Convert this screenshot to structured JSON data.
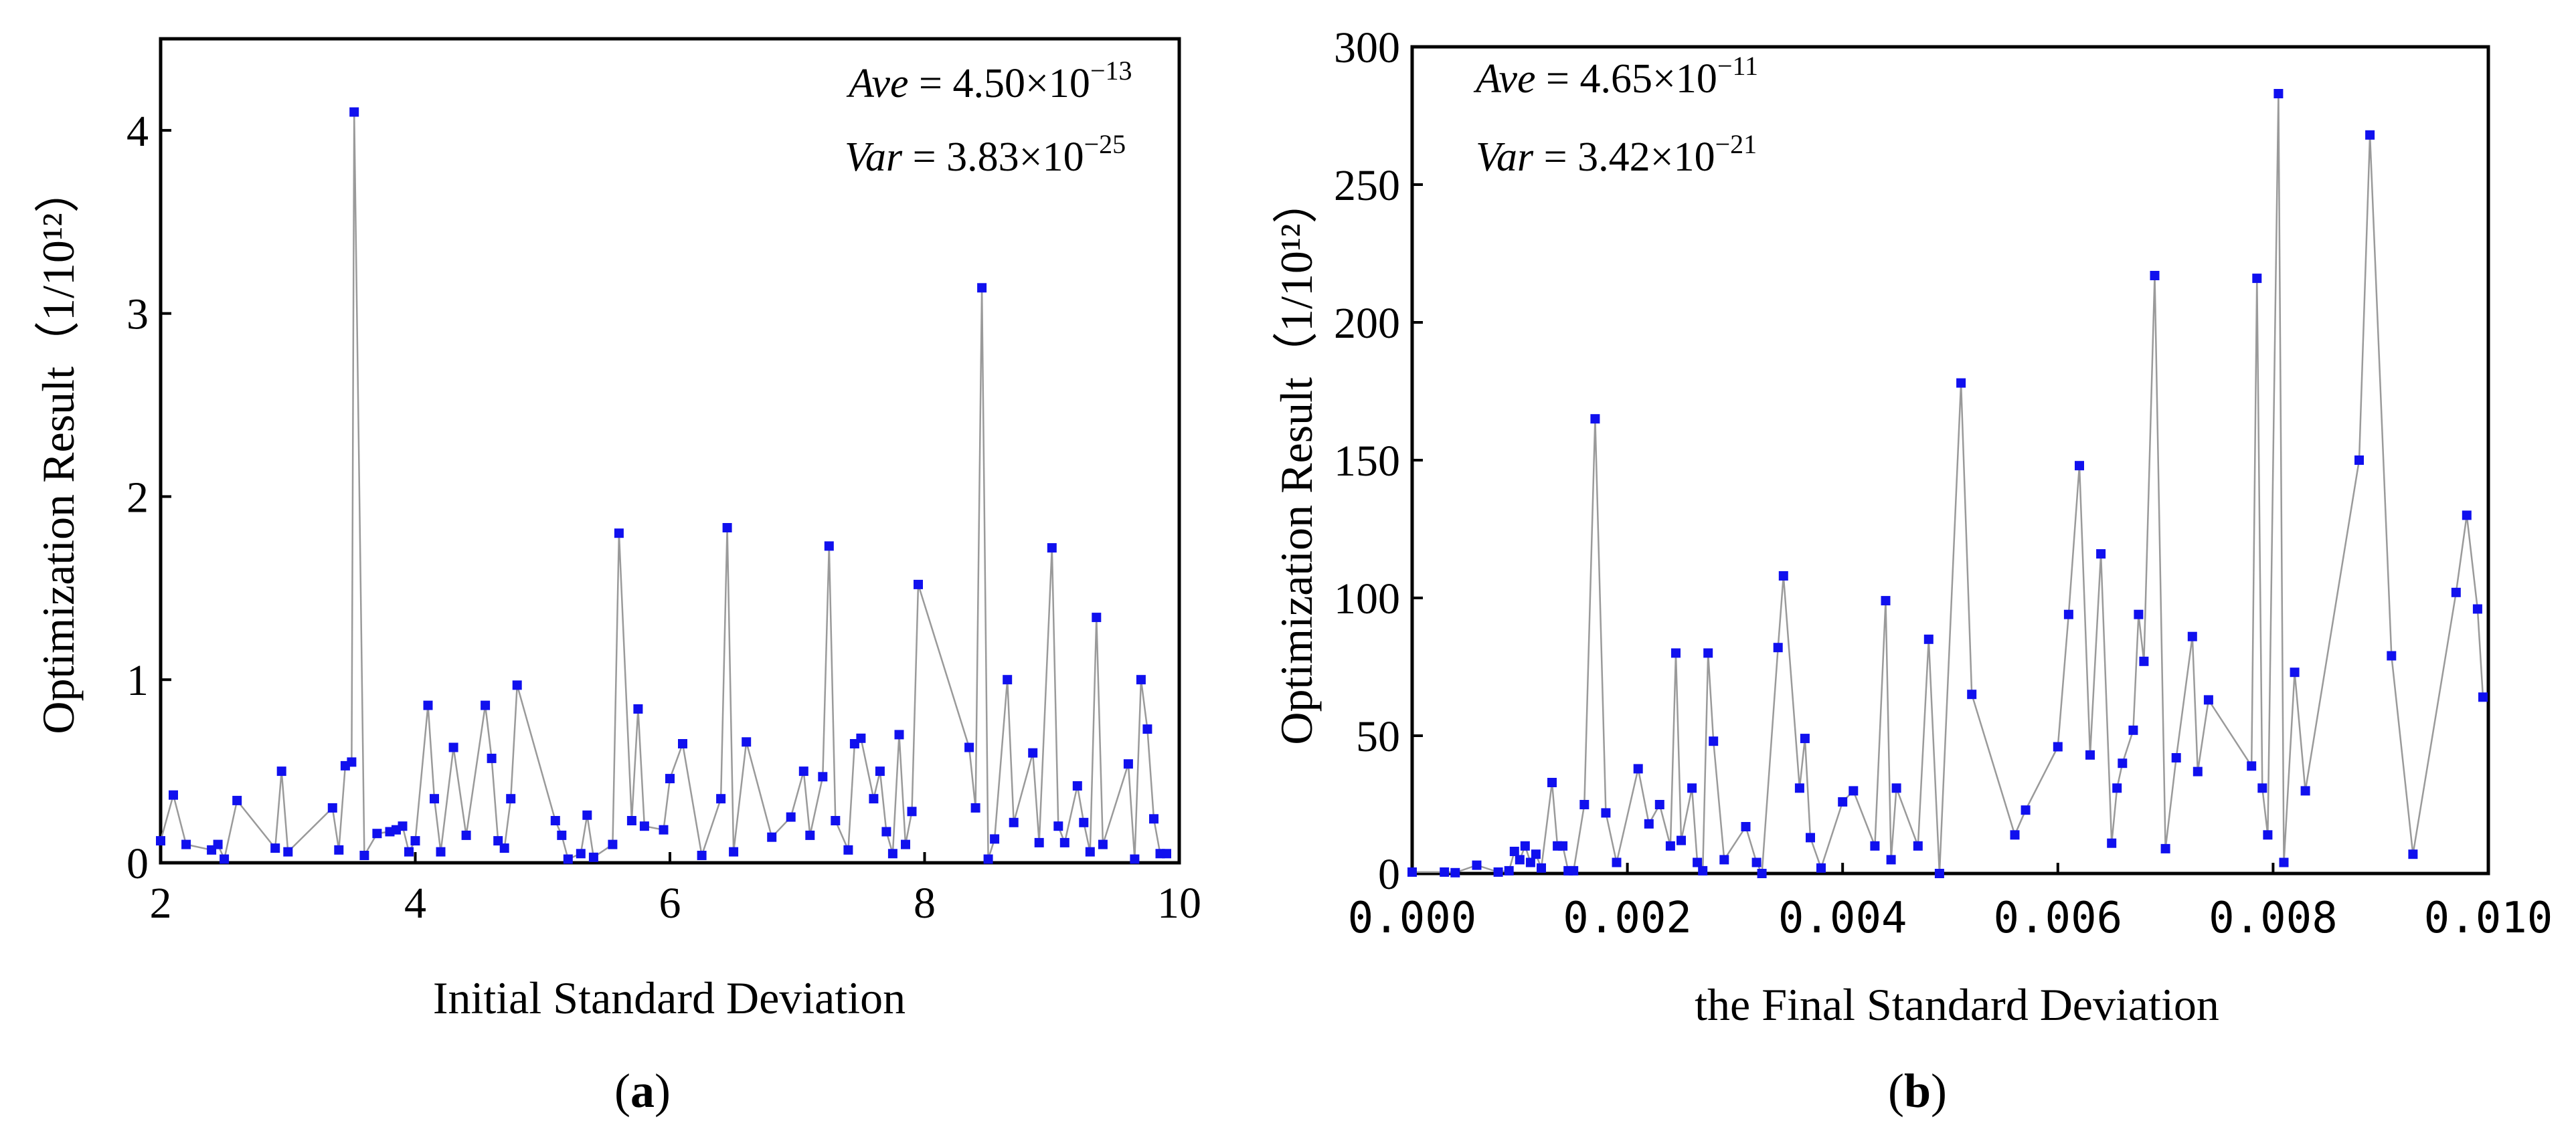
{
  "chart_data": [
    {
      "type": "scatter",
      "panel": "(a)",
      "caption_prefix": "(",
      "caption_letter": "a",
      "caption_suffix": ")",
      "xlabel": "Initial Standard Deviation",
      "ylabel": "Optimization Result（1/10¹²）",
      "xlim": [
        2,
        10
      ],
      "ylim": [
        0,
        4.5
      ],
      "xticks": [
        2,
        4,
        6,
        8,
        10
      ],
      "yticks": [
        0,
        1,
        2,
        3,
        4
      ],
      "stats": {
        "ave_label": "Ave",
        "ave_value": " = 4.50×10",
        "ave_exp": "−13",
        "var_label": "Var",
        "var_value": " = 3.83×10",
        "var_exp": "−25"
      },
      "connected": true,
      "x": [
        2.0,
        2.1,
        2.2,
        2.4,
        2.45,
        2.5,
        2.6,
        2.9,
        2.95,
        3.0,
        3.35,
        3.4,
        3.45,
        3.5,
        3.52,
        3.6,
        3.7,
        3.8,
        3.85,
        3.9,
        3.95,
        4.0,
        4.1,
        4.15,
        4.2,
        4.3,
        4.4,
        4.55,
        4.6,
        4.65,
        4.7,
        4.75,
        4.8,
        5.1,
        5.15,
        5.2,
        5.3,
        5.35,
        5.4,
        5.55,
        5.6,
        5.7,
        5.75,
        5.8,
        5.95,
        6.0,
        6.1,
        6.25,
        6.4,
        6.45,
        6.5,
        6.6,
        6.8,
        6.95,
        7.05,
        7.1,
        7.2,
        7.25,
        7.3,
        7.4,
        7.45,
        7.5,
        7.6,
        7.65,
        7.7,
        7.75,
        7.8,
        7.85,
        7.9,
        7.95,
        8.35,
        8.4,
        8.45,
        8.5,
        8.55,
        8.65,
        8.7,
        8.85,
        8.9,
        9.0,
        9.05,
        9.1,
        9.2,
        9.25,
        9.3,
        9.35,
        9.4,
        9.6,
        9.65,
        9.7,
        9.75,
        9.8,
        9.85,
        9.9
      ],
      "y": [
        0.12,
        0.37,
        0.1,
        0.07,
        0.1,
        0.02,
        0.34,
        0.08,
        0.5,
        0.06,
        0.3,
        0.07,
        0.53,
        0.55,
        4.1,
        0.04,
        0.16,
        0.17,
        0.18,
        0.2,
        0.06,
        0.12,
        0.86,
        0.35,
        0.06,
        0.63,
        0.15,
        0.86,
        0.57,
        0.12,
        0.08,
        0.35,
        0.97,
        0.23,
        0.15,
        0.02,
        0.05,
        0.26,
        0.03,
        0.1,
        1.8,
        0.23,
        0.84,
        0.2,
        0.18,
        0.46,
        0.65,
        0.04,
        0.35,
        1.83,
        0.06,
        0.66,
        0.14,
        0.25,
        0.5,
        0.15,
        0.47,
        1.73,
        0.23,
        0.07,
        0.65,
        0.68,
        0.35,
        0.5,
        0.17,
        0.05,
        0.7,
        0.1,
        0.28,
        1.52,
        0.63,
        0.3,
        3.14,
        0.02,
        0.13,
        1.0,
        0.22,
        0.6,
        0.11,
        1.72,
        0.2,
        0.11,
        0.42,
        0.22,
        0.06,
        1.34,
        0.1,
        0.54,
        0.02,
        1.0,
        0.73,
        0.24,
        0.05,
        0.05
      ]
    },
    {
      "type": "scatter",
      "panel": "(b)",
      "caption_prefix": "(",
      "caption_letter": "b",
      "caption_suffix": ")",
      "xlabel": "the Final Standard Deviation",
      "ylabel": "Optimization Result（1/10¹²）",
      "xlim": [
        0,
        0.01
      ],
      "ylim": [
        0,
        300
      ],
      "xticks": [
        "0.000",
        "0.002",
        "0.004",
        "0.006",
        "0.008",
        "0.010"
      ],
      "xtick_values": [
        0,
        0.002,
        0.004,
        0.006,
        0.008,
        0.01
      ],
      "yticks": [
        0,
        50,
        100,
        150,
        200,
        250,
        300
      ],
      "stats": {
        "ave_label": "Ave",
        "ave_value": " = 4.65×10",
        "ave_exp": "−11",
        "var_label": "Var",
        "var_value": " = 3.42×10",
        "var_exp": "−21"
      },
      "connected": true,
      "x": [
        0.0,
        0.0003,
        0.0004,
        0.0006,
        0.0008,
        0.0009,
        0.00095,
        0.001,
        0.00105,
        0.0011,
        0.00115,
        0.0012,
        0.0013,
        0.00135,
        0.0014,
        0.00145,
        0.0015,
        0.0016,
        0.0017,
        0.0018,
        0.0019,
        0.0021,
        0.0022,
        0.0023,
        0.0024,
        0.00245,
        0.0025,
        0.0026,
        0.00265,
        0.0027,
        0.00275,
        0.0028,
        0.0029,
        0.0031,
        0.0032,
        0.00325,
        0.0034,
        0.00345,
        0.0036,
        0.00365,
        0.0037,
        0.0038,
        0.004,
        0.0041,
        0.0043,
        0.0044,
        0.00445,
        0.0045,
        0.0047,
        0.0048,
        0.0049,
        0.0051,
        0.0052,
        0.0056,
        0.0057,
        0.006,
        0.0061,
        0.0062,
        0.0063,
        0.0064,
        0.0065,
        0.00655,
        0.0066,
        0.0067,
        0.00675,
        0.0068,
        0.0069,
        0.007,
        0.0071,
        0.00725,
        0.0073,
        0.0074,
        0.0078,
        0.00785,
        0.0079,
        0.00795,
        0.00805,
        0.0081,
        0.0082,
        0.0083,
        0.0088,
        0.0089,
        0.0091,
        0.0093,
        0.0097,
        0.0098,
        0.0099,
        0.00995
      ],
      "y": [
        0.5,
        0.5,
        0.3,
        3,
        0.5,
        1,
        8,
        5,
        10,
        4,
        7,
        2,
        33,
        10,
        10,
        1,
        1,
        25,
        165,
        22,
        4,
        38,
        18,
        25,
        10,
        80,
        12,
        31,
        4,
        1,
        80,
        48,
        5,
        17,
        4,
        0,
        82,
        108,
        31,
        49,
        13,
        2,
        26,
        30,
        10,
        99,
        5,
        31,
        10,
        85,
        0,
        178,
        65,
        14,
        23,
        46,
        94,
        148,
        43,
        116,
        11,
        31,
        40,
        52,
        94,
        77,
        217,
        9,
        42,
        86,
        37,
        63,
        39,
        216,
        31,
        14,
        283,
        4,
        73,
        30,
        150,
        268,
        79,
        7,
        102,
        130,
        96,
        64
      ]
    }
  ]
}
